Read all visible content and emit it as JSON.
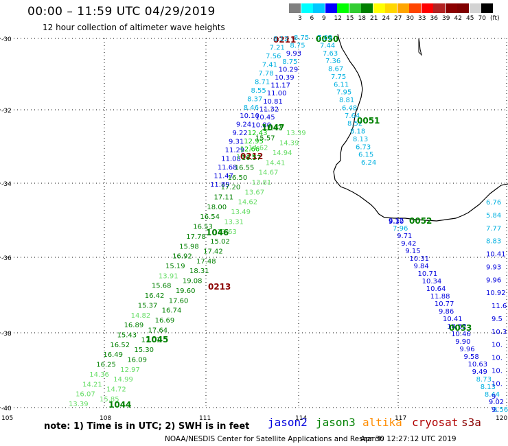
{
  "header": {
    "title": "00:00 – 11:59 UTC 04/29/2019",
    "subtitle": "12 hour collection of altimeter wave heights"
  },
  "scale": {
    "colors": [
      "#808080",
      "#00ffff",
      "#00c8ff",
      "#0000ff",
      "#00ff00",
      "#32cd32",
      "#008000",
      "#ffff00",
      "#ffd700",
      "#ffa500",
      "#ff4500",
      "#ff0000",
      "#b22222",
      "#8b0000",
      "#800000",
      "#d3d3d3",
      "#000000"
    ],
    "labels": [
      "3",
      "6",
      "9",
      "12",
      "15",
      "18",
      "21",
      "24",
      "27",
      "30",
      "33",
      "36",
      "39",
      "42",
      "45",
      "70",
      "(ft)"
    ]
  },
  "axes": {
    "lat_labels": [
      "-30",
      "-32",
      "-34",
      "-36",
      "-38",
      "-40"
    ],
    "lon_labels": [
      "105",
      "108",
      "111",
      "114",
      "117",
      "120"
    ]
  },
  "tracks": [
    {
      "id": "t1",
      "satellite": "jason2",
      "color": "#0000dd",
      "points": [
        {
          "label": "0211",
          "color": "#8b0000"
        },
        {
          "label": "8.12",
          "color": "#00b0e0"
        },
        {
          "label": "7.21",
          "color": "#00b0e0"
        },
        {
          "label": "7.56",
          "color": "#00b0e0"
        },
        {
          "label": "7.41",
          "color": "#00b0e0"
        },
        {
          "label": "7.78",
          "color": "#00b0e0"
        },
        {
          "label": "8.71",
          "color": "#00b0e0"
        },
        {
          "label": "8.55",
          "color": "#00b0e0"
        },
        {
          "label": "8.37",
          "color": "#00b0e0"
        },
        {
          "label": "8.46",
          "color": "#00b0e0"
        },
        {
          "label": "10.10",
          "color": "#0000dd"
        },
        {
          "label": "9.24",
          "color": "#0000dd"
        },
        {
          "label": "9.22",
          "color": "#0000dd"
        },
        {
          "label": "9.31",
          "color": "#0000dd"
        },
        {
          "label": "11.29",
          "color": "#0000dd"
        },
        {
          "label": "11.08",
          "color": "#0000dd"
        },
        {
          "label": "11.68",
          "color": "#0000dd"
        },
        {
          "label": "11.47",
          "color": "#0000dd"
        },
        {
          "label": "11.89",
          "color": "#0000dd"
        }
      ]
    },
    {
      "id": "t1b",
      "satellite": "jason2",
      "color": "#0000dd",
      "points": [
        {
          "label": "8.75",
          "color": "#00b0e0"
        },
        {
          "label": "8.75",
          "color": "#00b0e0"
        },
        {
          "label": "9.93",
          "color": "#0000dd"
        },
        {
          "label": "8.75",
          "color": "#00b0e0"
        },
        {
          "label": "10.29",
          "color": "#0000dd"
        },
        {
          "label": "10.39",
          "color": "#0000dd"
        },
        {
          "label": "11.17",
          "color": "#0000dd"
        },
        {
          "label": "11.00",
          "color": "#0000dd"
        },
        {
          "label": "10.81",
          "color": "#0000dd"
        },
        {
          "label": "11.32",
          "color": "#0000dd"
        },
        {
          "label": "10.45",
          "color": "#0000dd"
        },
        {
          "label": "10.80",
          "color": "#0000dd"
        },
        {
          "label": "12.43",
          "color": "#00c800"
        },
        {
          "label": "12.95",
          "color": "#00c800"
        },
        {
          "label": "12.66",
          "color": "#00c800"
        },
        {
          "label": "13.15",
          "color": "#66dd66"
        },
        {
          "label": "0212",
          "color": "#8b0000"
        }
      ]
    },
    {
      "id": "t2",
      "satellite": "jason3",
      "color": "#008000",
      "points": [
        {
          "label": "0050",
          "color": "#008000"
        },
        {
          "label": "7.09",
          "color": "#00b0e0"
        },
        {
          "label": "7.44",
          "color": "#00b0e0"
        },
        {
          "label": "7.63",
          "color": "#00b0e0"
        },
        {
          "label": "7.36",
          "color": "#00b0e0"
        },
        {
          "label": "8.67",
          "color": "#00b0e0"
        },
        {
          "label": "7.75",
          "color": "#00b0e0"
        },
        {
          "label": "6.11",
          "color": "#00b0e0"
        },
        {
          "label": "7.95",
          "color": "#00b0e0"
        },
        {
          "label": "8.81",
          "color": "#00b0e0"
        },
        {
          "label": "6.48",
          "color": "#00b0e0"
        },
        {
          "label": "7.64",
          "color": "#00b0e0"
        },
        {
          "label": "8.52",
          "color": "#00b0e0"
        },
        {
          "label": "8.18",
          "color": "#00b0e0"
        },
        {
          "label": "8.13",
          "color": "#00b0e0"
        },
        {
          "label": "6.73",
          "color": "#00b0e0"
        },
        {
          "label": "6.15",
          "color": "#00b0e0"
        },
        {
          "label": "6.24",
          "color": "#00b0e0"
        },
        {
          "label": "0051",
          "color": "#008000"
        }
      ]
    },
    {
      "id": "t3",
      "satellite": "jason3",
      "color": "#008000",
      "points": [
        {
          "label": "1047",
          "color": "#008000"
        },
        {
          "label": "12.47",
          "color": "#008000"
        },
        {
          "label": "13.39",
          "color": "#66dd66"
        },
        {
          "label": "15.57",
          "color": "#008000"
        },
        {
          "label": "14.39",
          "color": "#66dd66"
        },
        {
          "label": "14.62",
          "color": "#66dd66"
        },
        {
          "label": "14.94",
          "color": "#66dd66"
        },
        {
          "label": "16.57",
          "color": "#008000"
        },
        {
          "label": "14.41",
          "color": "#66dd66"
        },
        {
          "label": "16.55",
          "color": "#008000"
        },
        {
          "label": "14.67",
          "color": "#66dd66"
        },
        {
          "label": "16.50",
          "color": "#008000"
        },
        {
          "label": "13.81",
          "color": "#66dd66"
        },
        {
          "label": "17.20",
          "color": "#008000"
        },
        {
          "label": "13.67",
          "color": "#66dd66"
        },
        {
          "label": "17.11",
          "color": "#008000"
        },
        {
          "label": "14.62",
          "color": "#66dd66"
        },
        {
          "label": "18.00",
          "color": "#008000"
        },
        {
          "label": "13.49",
          "color": "#66dd66"
        },
        {
          "label": "16.54",
          "color": "#008000"
        },
        {
          "label": "13.31",
          "color": "#66dd66"
        },
        {
          "label": "16.53",
          "color": "#008000"
        },
        {
          "label": "13.63",
          "color": "#66dd66"
        },
        {
          "label": "17.78",
          "color": "#008000"
        },
        {
          "label": "15.02",
          "color": "#008000"
        },
        {
          "label": "15.98",
          "color": "#008000"
        },
        {
          "label": "17.42",
          "color": "#008000"
        },
        {
          "label": "16.92",
          "color": "#008000"
        },
        {
          "label": "17.48",
          "color": "#008000"
        },
        {
          "label": "15.19",
          "color": "#008000"
        },
        {
          "label": "18.31",
          "color": "#008000"
        },
        {
          "label": "13.91",
          "color": "#66dd66"
        },
        {
          "label": "19.08",
          "color": "#008000"
        },
        {
          "label": "15.68",
          "color": "#008000"
        },
        {
          "label": "19.60",
          "color": "#008000"
        },
        {
          "label": "16.42",
          "color": "#008000"
        },
        {
          "label": "17.60",
          "color": "#008000"
        },
        {
          "label": "15.37",
          "color": "#008000"
        },
        {
          "label": "16.74",
          "color": "#008000"
        },
        {
          "label": "14.82",
          "color": "#66dd66"
        },
        {
          "label": "16.69",
          "color": "#008000"
        },
        {
          "label": "16.89",
          "color": "#008000"
        },
        {
          "label": "17.64",
          "color": "#008000"
        },
        {
          "label": "15.43",
          "color": "#008000"
        },
        {
          "label": "17.01",
          "color": "#008000"
        },
        {
          "label": "16.52",
          "color": "#008000"
        },
        {
          "label": "15.30",
          "color": "#008000"
        },
        {
          "label": "16.49",
          "color": "#008000"
        },
        {
          "label": "16.09",
          "color": "#008000"
        },
        {
          "label": "16.25",
          "color": "#008000"
        },
        {
          "label": "12.97",
          "color": "#66dd66"
        },
        {
          "label": "14.36",
          "color": "#66dd66"
        },
        {
          "label": "14.99",
          "color": "#66dd66"
        },
        {
          "label": "14.21",
          "color": "#66dd66"
        },
        {
          "label": "14.72",
          "color": "#66dd66"
        },
        {
          "label": "1044",
          "color": "#008000"
        },
        {
          "label": "1045",
          "color": "#008000"
        },
        {
          "label": "1046",
          "color": "#008000"
        },
        {
          "label": "16.07",
          "color": "#66dd66"
        },
        {
          "label": "15.85",
          "color": "#66dd66"
        },
        {
          "label": "13.39",
          "color": "#66dd66"
        }
      ]
    },
    {
      "id": "t4",
      "satellite": "jason2",
      "color": "#0000dd",
      "points": [
        {
          "label": "9.30",
          "color": "#0000dd"
        },
        {
          "label": "0052",
          "color": "#008000"
        },
        {
          "label": "9.12",
          "color": "#0000dd"
        },
        {
          "label": "7.96",
          "color": "#00b0e0"
        },
        {
          "label": "9.71",
          "color": "#0000dd"
        },
        {
          "label": "9.42",
          "color": "#0000dd"
        },
        {
          "label": "9.15",
          "color": "#0000dd"
        },
        {
          "label": "10.31",
          "color": "#0000dd"
        },
        {
          "label": "9.84",
          "color": "#0000dd"
        },
        {
          "label": "10.71",
          "color": "#0000dd"
        },
        {
          "label": "10.34",
          "color": "#0000dd"
        },
        {
          "label": "10.64",
          "color": "#0000dd"
        },
        {
          "label": "11.88",
          "color": "#0000dd"
        },
        {
          "label": "10.77",
          "color": "#0000dd"
        },
        {
          "label": "9.86",
          "color": "#0000dd"
        },
        {
          "label": "10.41",
          "color": "#0000dd"
        },
        {
          "label": "10.52",
          "color": "#0000dd"
        },
        {
          "label": "0053",
          "color": "#008000"
        },
        {
          "label": "10.46",
          "color": "#0000dd"
        },
        {
          "label": "9.90",
          "color": "#0000dd"
        },
        {
          "label": "9.96",
          "color": "#0000dd"
        },
        {
          "label": "9.58",
          "color": "#0000dd"
        },
        {
          "label": "10.63",
          "color": "#0000dd"
        },
        {
          "label": "9.49",
          "color": "#0000dd"
        },
        {
          "label": "8.73",
          "color": "#00b0e0"
        },
        {
          "label": "8.13",
          "color": "#00b0e0"
        },
        {
          "label": "8.44",
          "color": "#00b0e0"
        },
        {
          "label": "9.02",
          "color": "#0000dd"
        },
        {
          "label": "8.56",
          "color": "#00b0e0"
        }
      ]
    },
    {
      "id": "t5",
      "satellite": "jason2",
      "color": "#0000dd",
      "points": [
        {
          "label": "6.76",
          "color": "#00b0e0"
        },
        {
          "label": "5.84",
          "color": "#00b0e0"
        },
        {
          "label": "7.77",
          "color": "#00b0e0"
        },
        {
          "label": "8.83",
          "color": "#00b0e0"
        },
        {
          "label": "10.41",
          "color": "#0000dd"
        },
        {
          "label": "9.93",
          "color": "#0000dd"
        },
        {
          "label": "9.96",
          "color": "#0000dd"
        },
        {
          "label": "10.92",
          "color": "#0000dd"
        },
        {
          "label": "11.6",
          "color": "#0000dd"
        },
        {
          "label": "9.5",
          "color": "#0000dd"
        },
        {
          "label": "10.3",
          "color": "#0000dd"
        },
        {
          "label": "10.",
          "color": "#0000dd"
        },
        {
          "label": "10.",
          "color": "#0000dd"
        },
        {
          "label": "10.",
          "color": "#0000dd"
        },
        {
          "label": "10.",
          "color": "#0000dd"
        },
        {
          "label": "9.",
          "color": "#0000dd"
        },
        {
          "label": "9.",
          "color": "#0000dd"
        }
      ]
    },
    {
      "id": "t6",
      "satellite": "jason2",
      "color": "#8b0000",
      "points": [
        {
          "label": "0213",
          "color": "#8b0000"
        }
      ]
    }
  ],
  "footer": {
    "note": "note: 1) Time is in UTC; 2) SWH is in feet",
    "satellites": [
      {
        "name": "jason2",
        "color": "#0000dd"
      },
      {
        "name": "jason3",
        "color": "#008000"
      },
      {
        "name": "altika",
        "color": "#ff8c00"
      },
      {
        "name": "cryosat",
        "color": "#b00000"
      },
      {
        "name": "s3a",
        "color": "#8b0000"
      }
    ],
    "credit": "NOAA/NESDIS Center for Satellite Applications and Research",
    "timestamp": "Apr 30 12:27:12 UTC 2019"
  }
}
